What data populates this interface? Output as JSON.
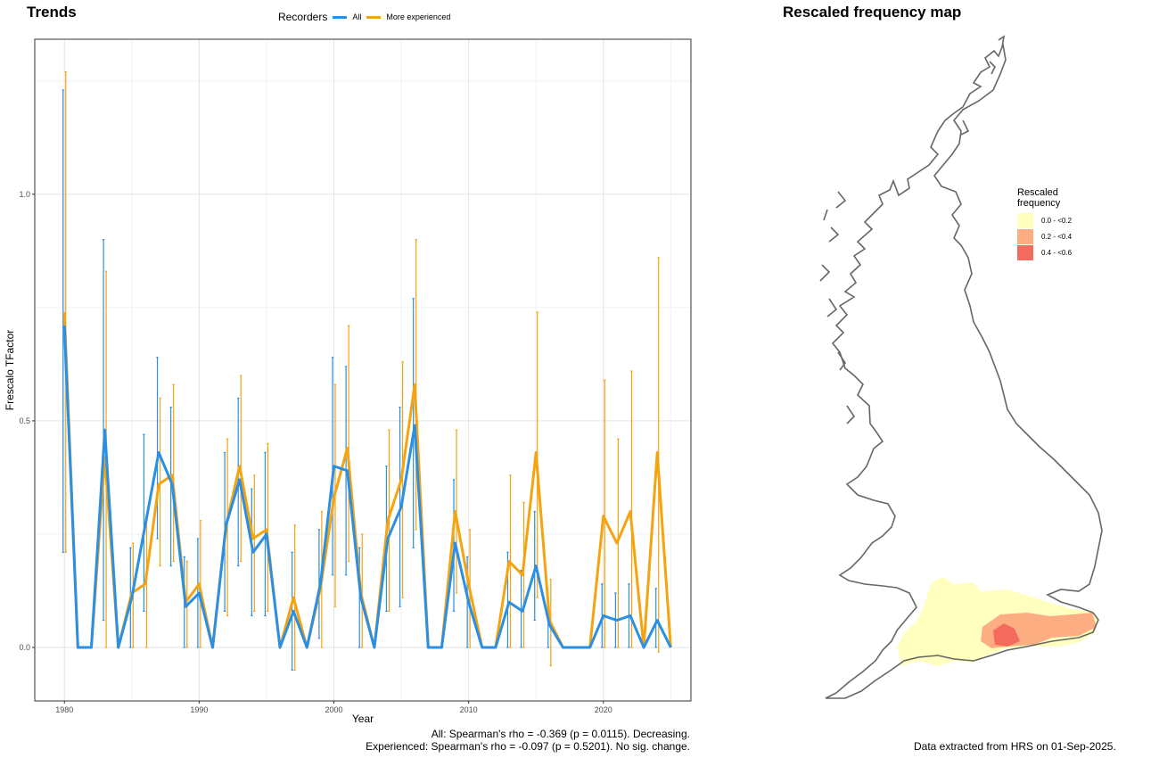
{
  "panels": {
    "trends_title": "Trends",
    "map_title": "Rescaled frequency map"
  },
  "legend": {
    "title": "Recorders",
    "items": [
      {
        "label": "All",
        "color": "#2b8fe3"
      },
      {
        "label": "More experienced",
        "color": "#f5a30f"
      }
    ]
  },
  "stats": {
    "all": "All: Spearman's rho = -0.369 (p = 0.0115). Decreasing.",
    "experienced": "Experienced: Spearman's rho = -0.097 (p = 0.5201). No sig. change."
  },
  "chart_data": {
    "type": "line",
    "xlabel": "Year",
    "ylabel": "Frescalo TFactor",
    "xlim": [
      1977.8,
      2026.5
    ],
    "ylim": [
      -0.118,
      1.342
    ],
    "x_ticks": [
      "1980",
      "1990",
      "2000",
      "2010",
      "2020"
    ],
    "y_ticks": [
      "0.0",
      "0.5",
      "1.0"
    ],
    "grid": true,
    "x": [
      1980,
      1981,
      1982,
      1983,
      1984,
      1985,
      1986,
      1987,
      1988,
      1989,
      1990,
      1991,
      1992,
      1993,
      1994,
      1995,
      1996,
      1997,
      1998,
      1999,
      2000,
      2001,
      2002,
      2003,
      2004,
      2005,
      2006,
      2007,
      2008,
      2009,
      2010,
      2011,
      2012,
      2013,
      2014,
      2015,
      2016,
      2017,
      2018,
      2019,
      2020,
      2021,
      2022,
      2023,
      2024,
      2025
    ],
    "series": [
      {
        "name": "All",
        "color": "#2b8fe3",
        "values": [
          0.71,
          0,
          0,
          0.48,
          0,
          0.11,
          0.27,
          0.43,
          0.36,
          0.09,
          0.12,
          0,
          0.27,
          0.37,
          0.21,
          0.25,
          0,
          0.08,
          0,
          0.14,
          0.4,
          0.39,
          0.11,
          0,
          0.24,
          0.31,
          0.49,
          0,
          0,
          0.23,
          0.1,
          0,
          0,
          0.1,
          0.08,
          0.18,
          0.05,
          0,
          0,
          0,
          0.07,
          0.06,
          0.07,
          0,
          0.06,
          0
        ],
        "lower": [
          0.21,
          0,
          0,
          0.06,
          0,
          0,
          0.08,
          0.24,
          0.18,
          0,
          0,
          0,
          0.08,
          0.18,
          0.07,
          0.07,
          0,
          -0.05,
          0,
          0.02,
          0.16,
          0.16,
          0,
          0,
          0.08,
          0.09,
          0.22,
          0,
          0,
          0.08,
          0,
          0,
          0,
          0,
          0,
          0.06,
          0,
          0,
          0,
          0,
          0,
          0,
          0,
          0,
          0,
          0
        ],
        "upper": [
          1.23,
          0,
          0,
          0.9,
          0,
          0.22,
          0.47,
          0.64,
          0.53,
          0.2,
          0.24,
          0,
          0.43,
          0.55,
          0.35,
          0.43,
          0,
          0.21,
          0,
          0.26,
          0.64,
          0.62,
          0.22,
          0,
          0.4,
          0.53,
          0.77,
          0,
          0,
          0.37,
          0.2,
          0,
          0,
          0.21,
          0.17,
          0.3,
          0.1,
          0,
          0,
          0,
          0.14,
          0.12,
          0.14,
          0,
          0.13,
          0
        ]
      },
      {
        "name": "More experienced",
        "color": "#f5a30f",
        "values": [
          0.74,
          0,
          0,
          0.42,
          0,
          0.12,
          0.14,
          0.36,
          0.38,
          0.1,
          0.14,
          0,
          0.27,
          0.4,
          0.24,
          0.26,
          0,
          0.11,
          0,
          0.13,
          0.33,
          0.44,
          0.12,
          0,
          0.28,
          0.37,
          0.58,
          0,
          0,
          0.3,
          0.14,
          0,
          0,
          0.19,
          0.16,
          0.43,
          0.06,
          0,
          0,
          0,
          0.29,
          0.23,
          0.3,
          0,
          0.43,
          0
        ],
        "lower": [
          0.21,
          0,
          0,
          0,
          0,
          0,
          0,
          0.18,
          0.19,
          0,
          0,
          0,
          0.07,
          0.19,
          0.08,
          0.08,
          0,
          -0.05,
          0,
          0,
          0.09,
          0.19,
          0,
          0,
          0.08,
          0.11,
          0.26,
          0,
          0,
          0.12,
          0,
          0,
          0,
          0,
          0,
          0.11,
          -0.04,
          0,
          0,
          0,
          0,
          0,
          0,
          0,
          -0.01,
          0
        ],
        "upper": [
          1.27,
          0,
          0,
          0.83,
          0,
          0.23,
          0.28,
          0.55,
          0.58,
          0.19,
          0.28,
          0,
          0.46,
          0.6,
          0.38,
          0.45,
          0,
          0.27,
          0,
          0.3,
          0.58,
          0.71,
          0.25,
          0,
          0.48,
          0.63,
          0.9,
          0,
          0,
          0.48,
          0.26,
          0,
          0,
          0.38,
          0.32,
          0.74,
          0.15,
          0,
          0,
          0,
          0.59,
          0.46,
          0.61,
          0,
          0.86,
          0
        ]
      }
    ]
  },
  "map_legend": {
    "title_line1": "Rescaled",
    "title_line2": "frequency",
    "items": [
      {
        "label": "0.0 - <0.2",
        "color": "#ffffc0"
      },
      {
        "label": "0.2 - <0.4",
        "color": "#fcae82"
      },
      {
        "label": "0.4 - <0.6",
        "color": "#f46a5d"
      }
    ]
  },
  "footer": "Data extracted from HRS on 01-Sep-2025."
}
